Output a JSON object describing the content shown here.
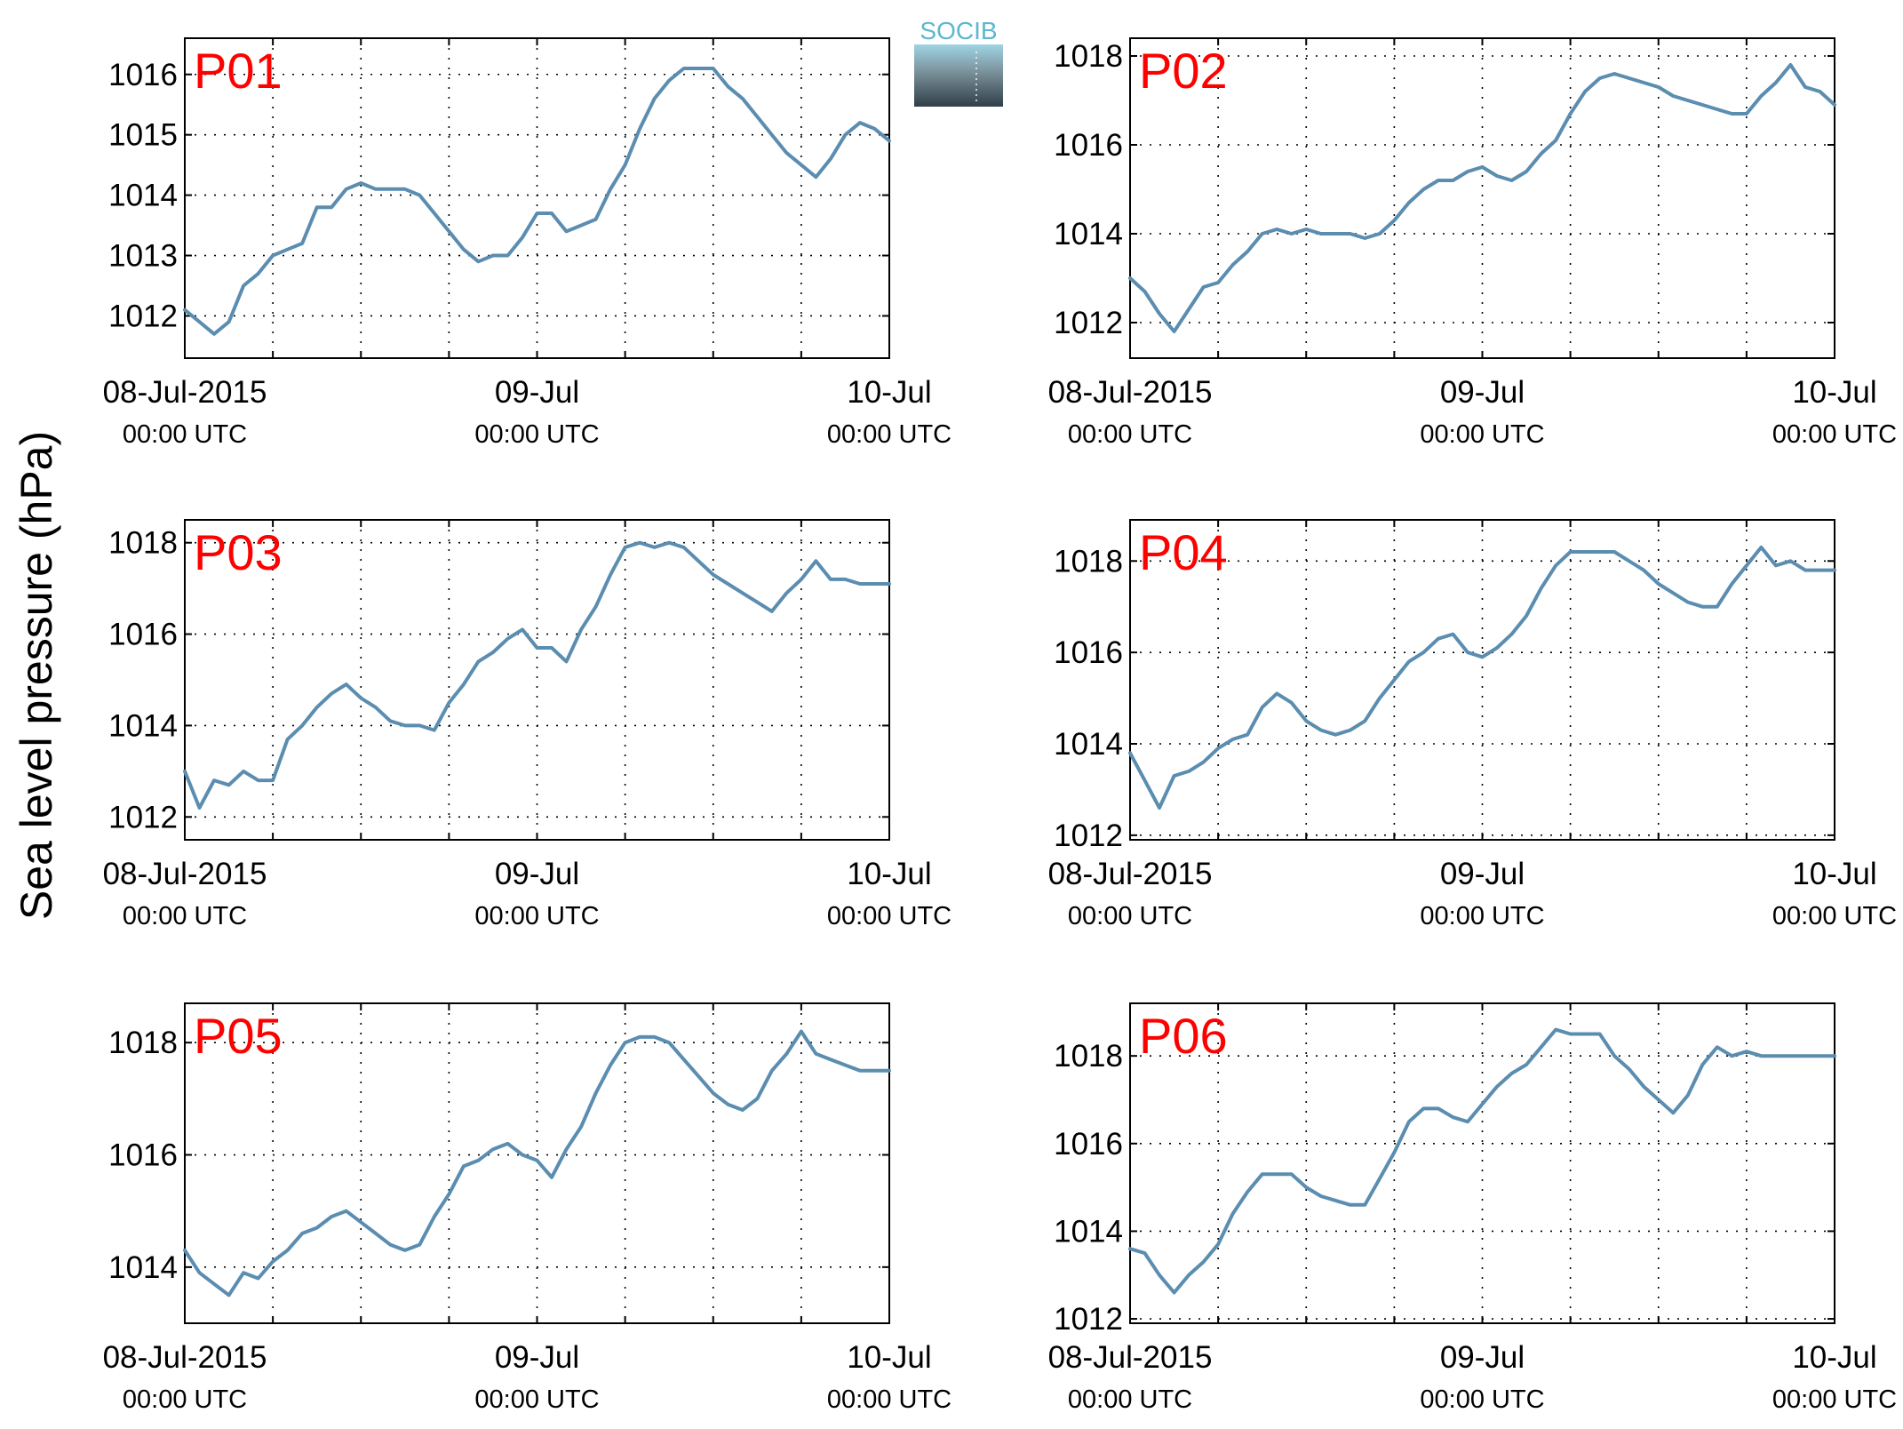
{
  "figure": {
    "ylabel": "Sea level pressure (hPa)",
    "logo_text": "SOCIB",
    "line_color": "#5b8db0",
    "label_color": "#ff0000"
  },
  "chart_data": [
    {
      "type": "line",
      "panel_label": "P01",
      "xlim": [
        "2015-07-08T00:00",
        "2015-07-10T00:00"
      ],
      "ylim": [
        1011.3,
        1016.6
      ],
      "grid": true,
      "x_tick_labels": [
        {
          "date": "08-Jul-2015",
          "time": "00:00 UTC"
        },
        {
          "date": "09-Jul",
          "time": "00:00 UTC"
        },
        {
          "date": "10-Jul",
          "time": "00:00 UTC"
        }
      ],
      "yticks": [
        1012,
        1013,
        1014,
        1015,
        1016
      ],
      "x_hours": [
        0,
        1,
        2,
        3,
        4,
        5,
        6,
        7,
        8,
        9,
        10,
        11,
        12,
        13,
        14,
        15,
        16,
        17,
        18,
        19,
        20,
        21,
        22,
        23,
        24,
        25,
        26,
        27,
        28,
        29,
        30,
        31,
        32,
        33,
        34,
        35,
        36,
        37,
        38,
        39,
        40,
        41,
        42,
        43,
        44,
        45,
        46,
        47,
        48
      ],
      "values": [
        1012.1,
        1011.9,
        1011.7,
        1011.9,
        1012.5,
        1012.7,
        1013.0,
        1013.1,
        1013.2,
        1013.8,
        1013.8,
        1014.1,
        1014.2,
        1014.1,
        1014.1,
        1014.1,
        1014.0,
        1013.7,
        1013.4,
        1013.1,
        1012.9,
        1013.0,
        1013.0,
        1013.3,
        1013.7,
        1013.7,
        1013.4,
        1013.5,
        1013.6,
        1014.1,
        1014.5,
        1015.1,
        1015.6,
        1015.9,
        1016.1,
        1016.1,
        1016.1,
        1015.8,
        1015.6,
        1015.3,
        1015.0,
        1014.7,
        1014.5,
        1014.3,
        1014.6,
        1015.0,
        1015.2,
        1015.1,
        1014.9
      ]
    },
    {
      "type": "line",
      "panel_label": "P02",
      "xlim": [
        "2015-07-08T00:00",
        "2015-07-10T00:00"
      ],
      "ylim": [
        1011.2,
        1018.4
      ],
      "grid": true,
      "x_tick_labels": [
        {
          "date": "08-Jul-2015",
          "time": "00:00 UTC"
        },
        {
          "date": "09-Jul",
          "time": "00:00 UTC"
        },
        {
          "date": "10-Jul",
          "time": "00:00 UTC"
        }
      ],
      "yticks": [
        1012,
        1014,
        1016,
        1018
      ],
      "x_hours": [
        0,
        1,
        2,
        3,
        4,
        5,
        6,
        7,
        8,
        9,
        10,
        11,
        12,
        13,
        14,
        15,
        16,
        17,
        18,
        19,
        20,
        21,
        22,
        23,
        24,
        25,
        26,
        27,
        28,
        29,
        30,
        31,
        32,
        33,
        34,
        35,
        36,
        37,
        38,
        39,
        40,
        41,
        42,
        43,
        44,
        45,
        46,
        47,
        48
      ],
      "values": [
        1013.0,
        1012.7,
        1012.2,
        1011.8,
        1012.3,
        1012.8,
        1012.9,
        1013.3,
        1013.6,
        1014.0,
        1014.1,
        1014.0,
        1014.1,
        1014.0,
        1014.0,
        1014.0,
        1013.9,
        1014.0,
        1014.3,
        1014.7,
        1015.0,
        1015.2,
        1015.2,
        1015.4,
        1015.5,
        1015.3,
        1015.2,
        1015.4,
        1015.8,
        1016.1,
        1016.7,
        1017.2,
        1017.5,
        1017.6,
        1017.5,
        1017.4,
        1017.3,
        1017.1,
        1017.0,
        1016.9,
        1016.8,
        1016.7,
        1016.7,
        1017.1,
        1017.4,
        1017.8,
        1017.3,
        1017.2,
        1016.9
      ]
    },
    {
      "type": "line",
      "panel_label": "P03",
      "xlim": [
        "2015-07-08T00:00",
        "2015-07-10T00:00"
      ],
      "ylim": [
        1011.5,
        1018.5
      ],
      "grid": true,
      "x_tick_labels": [
        {
          "date": "08-Jul-2015",
          "time": "00:00 UTC"
        },
        {
          "date": "09-Jul",
          "time": "00:00 UTC"
        },
        {
          "date": "10-Jul",
          "time": "00:00 UTC"
        }
      ],
      "yticks": [
        1012,
        1014,
        1016,
        1018
      ],
      "x_hours": [
        0,
        1,
        2,
        3,
        4,
        5,
        6,
        7,
        8,
        9,
        10,
        11,
        12,
        13,
        14,
        15,
        16,
        17,
        18,
        19,
        20,
        21,
        22,
        23,
        24,
        25,
        26,
        27,
        28,
        29,
        30,
        31,
        32,
        33,
        34,
        35,
        36,
        37,
        38,
        39,
        40,
        41,
        42,
        43,
        44,
        45,
        46,
        47,
        48
      ],
      "values": [
        1013.0,
        1012.2,
        1012.8,
        1012.7,
        1013.0,
        1012.8,
        1012.8,
        1013.7,
        1014.0,
        1014.4,
        1014.7,
        1014.9,
        1014.6,
        1014.4,
        1014.1,
        1014.0,
        1014.0,
        1013.9,
        1014.5,
        1014.9,
        1015.4,
        1015.6,
        1015.9,
        1016.1,
        1015.7,
        1015.7,
        1015.4,
        1016.1,
        1016.6,
        1017.3,
        1017.9,
        1018.0,
        1017.9,
        1018.0,
        1017.9,
        1017.6,
        1017.3,
        1017.1,
        1016.9,
        1016.7,
        1016.5,
        1016.9,
        1017.2,
        1017.6,
        1017.2,
        1017.2,
        1017.1,
        1017.1,
        1017.1
      ]
    },
    {
      "type": "line",
      "panel_label": "P04",
      "xlim": [
        "2015-07-08T00:00",
        "2015-07-10T00:00"
      ],
      "ylim": [
        1011.9,
        1018.9
      ],
      "grid": true,
      "x_tick_labels": [
        {
          "date": "08-Jul-2015",
          "time": "00:00 UTC"
        },
        {
          "date": "09-Jul",
          "time": "00:00 UTC"
        },
        {
          "date": "10-Jul",
          "time": "00:00 UTC"
        }
      ],
      "yticks": [
        1012,
        1014,
        1016,
        1018
      ],
      "x_hours": [
        0,
        1,
        2,
        3,
        4,
        5,
        6,
        7,
        8,
        9,
        10,
        11,
        12,
        13,
        14,
        15,
        16,
        17,
        18,
        19,
        20,
        21,
        22,
        23,
        24,
        25,
        26,
        27,
        28,
        29,
        30,
        31,
        32,
        33,
        34,
        35,
        36,
        37,
        38,
        39,
        40,
        41,
        42,
        43,
        44,
        45,
        46,
        47,
        48
      ],
      "values": [
        1013.8,
        1013.2,
        1012.6,
        1013.3,
        1013.4,
        1013.6,
        1013.9,
        1014.1,
        1014.2,
        1014.8,
        1015.1,
        1014.9,
        1014.5,
        1014.3,
        1014.2,
        1014.3,
        1014.5,
        1015.0,
        1015.4,
        1015.8,
        1016.0,
        1016.3,
        1016.4,
        1016.0,
        1015.9,
        1016.1,
        1016.4,
        1016.8,
        1017.4,
        1017.9,
        1018.2,
        1018.2,
        1018.2,
        1018.2,
        1018.0,
        1017.8,
        1017.5,
        1017.3,
        1017.1,
        1017.0,
        1017.0,
        1017.5,
        1017.9,
        1018.3,
        1017.9,
        1018.0,
        1017.8,
        1017.8,
        1017.8
      ]
    },
    {
      "type": "line",
      "panel_label": "P05",
      "xlim": [
        "2015-07-08T00:00",
        "2015-07-10T00:00"
      ],
      "ylim": [
        1013.0,
        1018.7
      ],
      "grid": true,
      "x_tick_labels": [
        {
          "date": "08-Jul-2015",
          "time": "00:00 UTC"
        },
        {
          "date": "09-Jul",
          "time": "00:00 UTC"
        },
        {
          "date": "10-Jul",
          "time": "00:00 UTC"
        }
      ],
      "yticks": [
        1014,
        1016,
        1018
      ],
      "x_hours": [
        0,
        1,
        2,
        3,
        4,
        5,
        6,
        7,
        8,
        9,
        10,
        11,
        12,
        13,
        14,
        15,
        16,
        17,
        18,
        19,
        20,
        21,
        22,
        23,
        24,
        25,
        26,
        27,
        28,
        29,
        30,
        31,
        32,
        33,
        34,
        35,
        36,
        37,
        38,
        39,
        40,
        41,
        42,
        43,
        44,
        45,
        46,
        47,
        48
      ],
      "values": [
        1014.3,
        1013.9,
        1013.7,
        1013.5,
        1013.9,
        1013.8,
        1014.1,
        1014.3,
        1014.6,
        1014.7,
        1014.9,
        1015.0,
        1014.8,
        1014.6,
        1014.4,
        1014.3,
        1014.4,
        1014.9,
        1015.3,
        1015.8,
        1015.9,
        1016.1,
        1016.2,
        1016.0,
        1015.9,
        1015.6,
        1016.1,
        1016.5,
        1017.1,
        1017.6,
        1018.0,
        1018.1,
        1018.1,
        1018.0,
        1017.7,
        1017.4,
        1017.1,
        1016.9,
        1016.8,
        1017.0,
        1017.5,
        1017.8,
        1018.2,
        1017.8,
        1017.7,
        1017.6,
        1017.5,
        1017.5,
        1017.5
      ]
    },
    {
      "type": "line",
      "panel_label": "P06",
      "xlim": [
        "2015-07-08T00:00",
        "2015-07-10T00:00"
      ],
      "ylim": [
        1011.9,
        1019.2
      ],
      "grid": true,
      "x_tick_labels": [
        {
          "date": "08-Jul-2015",
          "time": "00:00 UTC"
        },
        {
          "date": "09-Jul",
          "time": "00:00 UTC"
        },
        {
          "date": "10-Jul",
          "time": "00:00 UTC"
        }
      ],
      "yticks": [
        1012,
        1014,
        1016,
        1018
      ],
      "x_hours": [
        0,
        1,
        2,
        3,
        4,
        5,
        6,
        7,
        8,
        9,
        10,
        11,
        12,
        13,
        14,
        15,
        16,
        17,
        18,
        19,
        20,
        21,
        22,
        23,
        24,
        25,
        26,
        27,
        28,
        29,
        30,
        31,
        32,
        33,
        34,
        35,
        36,
        37,
        38,
        39,
        40,
        41,
        42,
        43,
        44,
        45,
        46,
        47,
        48
      ],
      "values": [
        1013.6,
        1013.5,
        1013.0,
        1012.6,
        1013.0,
        1013.3,
        1013.7,
        1014.4,
        1014.9,
        1015.3,
        1015.3,
        1015.3,
        1015.0,
        1014.8,
        1014.7,
        1014.6,
        1014.6,
        1015.2,
        1015.8,
        1016.5,
        1016.8,
        1016.8,
        1016.6,
        1016.5,
        1016.9,
        1017.3,
        1017.6,
        1017.8,
        1018.2,
        1018.6,
        1018.5,
        1018.5,
        1018.5,
        1018.0,
        1017.7,
        1017.3,
        1017.0,
        1016.7,
        1017.1,
        1017.8,
        1018.2,
        1018.0,
        1018.1,
        1018.0,
        1018.0,
        1018.0,
        1018.0,
        1018.0,
        1018.0
      ]
    }
  ]
}
